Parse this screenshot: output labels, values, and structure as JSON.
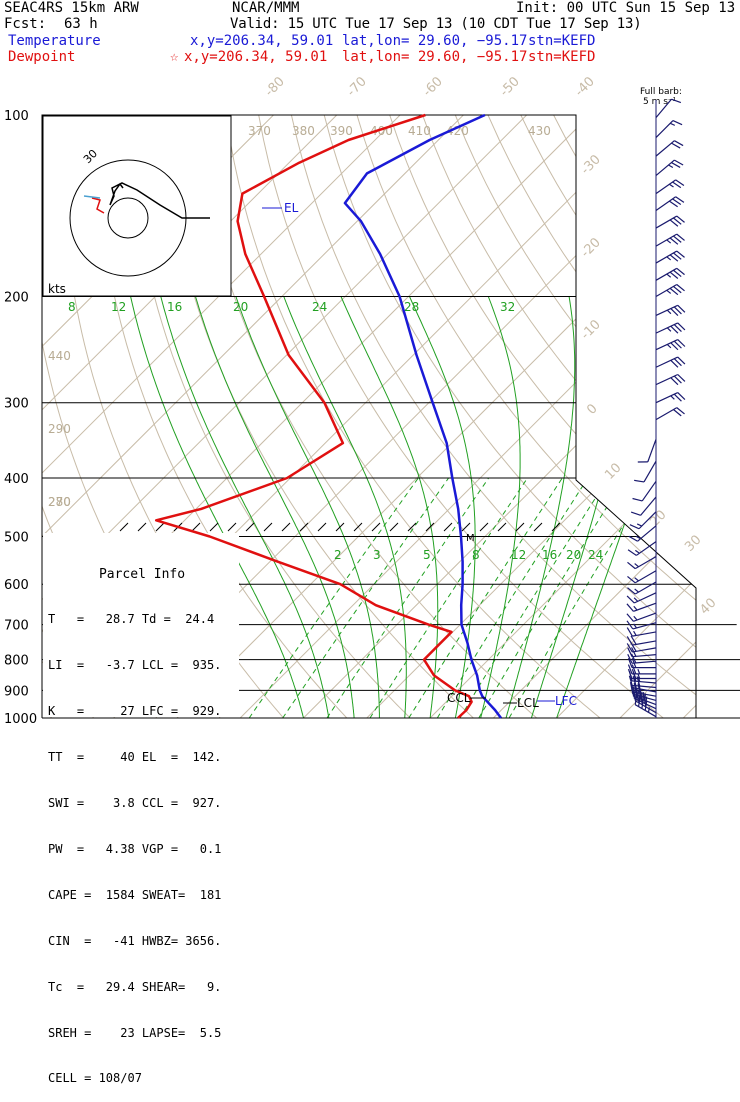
{
  "header": {
    "model": "SEAC4RS 15km ARW",
    "center": "NCAR/MMM",
    "init": "Init: 00 UTC Sun 15 Sep 13",
    "fcst_label": "Fcst:",
    "fcst_value": "63 h",
    "valid": "Valid: 15 UTC Tue 17 Sep 13 (10 CDT Tue 17 Sep 13)"
  },
  "legend": {
    "temperature": {
      "label": "Temperature",
      "xy": "x,y=206.34, 59.01",
      "latlon": "lat,lon= 29.60, −95.17",
      "stn": "stn=KEFD",
      "color": "#1a1ad6"
    },
    "dewpoint": {
      "label": "Dewpoint",
      "marker": "☆",
      "xy": "x,y=206.34, 59.01",
      "latlon": "lat,lon= 29.60, −95.17",
      "stn": "stn=KEFD",
      "color": "#e01010"
    }
  },
  "barb_legend": {
    "line1": "Full barb:",
    "line2": "5 m s⁻¹"
  },
  "hodograph": {
    "units": "kts",
    "ring_label": "30"
  },
  "parcel_info": {
    "title": "Parcel Info",
    "rows": [
      "T   =   28.7 Td =  24.4",
      "LI  =   -3.7 LCL =  935.",
      "K   =     27 LFC =  929.",
      "TT  =     40 EL  =  142.",
      "SWI =    3.8 CCL =  927.",
      "PW  =   4.38 VGP =   0.1",
      "CAPE =  1584 SWEAT=  181",
      "CIN  =   -41 HWBZ= 3656.",
      "Tc  =   29.4 SHEAR=   9.",
      "SREH =    23 LAPSE=  5.5",
      "CELL = 108/07"
    ]
  },
  "levels": {
    "EL": "EL",
    "CCL": "CCL",
    "LCL": "LCL",
    "LFC": "LFC",
    "M": "M"
  },
  "colors": {
    "temperature": "#1a1ad6",
    "dewpoint": "#e01010",
    "isotherm": "#c8bca8",
    "dry_adiabat": "#c8bca8",
    "mixing_ratio": "#22a022",
    "pressure_line": "#000000",
    "wind_barb": "#1a1a6e"
  },
  "chart_data": {
    "type": "line",
    "title": "",
    "y_axis": {
      "label": "",
      "scale": "log",
      "range": [
        1000,
        100
      ],
      "ticks": [
        100,
        200,
        300,
        400,
        500,
        600,
        700,
        800,
        900,
        1000
      ]
    },
    "isotherm_labels": [
      -80,
      -70,
      -60,
      -50,
      -40,
      -30,
      -20,
      -10,
      0,
      10,
      20,
      30,
      40
    ],
    "theta_labels": [
      370,
      380,
      390,
      400,
      410,
      420,
      430,
      440,
      290,
      280,
      270
    ],
    "mixing_ratio_upper_labels": [
      8,
      12,
      16,
      20,
      24,
      28,
      32
    ],
    "mixing_ratio_lower_labels": [
      2,
      3,
      5,
      8,
      12,
      16,
      20,
      24
    ],
    "series": [
      {
        "name": "Temperature",
        "color": "#1a1ad6",
        "points": [
          {
            "p": 1000,
            "t": 31.2
          },
          {
            "p": 970,
            "t": 29
          },
          {
            "p": 940,
            "t": 26.5
          },
          {
            "p": 920,
            "t": 24.8
          },
          {
            "p": 900,
            "t": 23.5
          },
          {
            "p": 850,
            "t": 20.7
          },
          {
            "p": 800,
            "t": 17.3
          },
          {
            "p": 750,
            "t": 14
          },
          {
            "p": 700,
            "t": 10.2
          },
          {
            "p": 650,
            "t": 7.1
          },
          {
            "p": 600,
            "t": 4
          },
          {
            "p": 550,
            "t": 0.4
          },
          {
            "p": 500,
            "t": -3.8
          },
          {
            "p": 450,
            "t": -8.6
          },
          {
            "p": 400,
            "t": -14.4
          },
          {
            "p": 350,
            "t": -20.8
          },
          {
            "p": 300,
            "t": -29.4
          },
          {
            "p": 250,
            "t": -39.5
          },
          {
            "p": 200,
            "t": -51.4
          },
          {
            "p": 170,
            "t": -61.2
          },
          {
            "p": 150,
            "t": -69.4
          },
          {
            "p": 140,
            "t": -74.8
          },
          {
            "p": 125,
            "t": -76
          },
          {
            "p": 110,
            "t": -71.4
          },
          {
            "p": 100,
            "t": -66.6
          }
        ]
      },
      {
        "name": "Dewpoint",
        "color": "#e01010",
        "points": [
          {
            "p": 1000,
            "t": 24.4
          },
          {
            "p": 970,
            "t": 24.5
          },
          {
            "p": 940,
            "t": 24
          },
          {
            "p": 920,
            "t": 22.7
          },
          {
            "p": 900,
            "t": 19.6
          },
          {
            "p": 850,
            "t": 13.9
          },
          {
            "p": 800,
            "t": 9.8
          },
          {
            "p": 760,
            "t": 9.8
          },
          {
            "p": 720,
            "t": 9.8
          },
          {
            "p": 700,
            "t": 5
          },
          {
            "p": 650,
            "t": -6.4
          },
          {
            "p": 600,
            "t": -15.3
          },
          {
            "p": 550,
            "t": -28.9
          },
          {
            "p": 500,
            "t": -43.5
          },
          {
            "p": 470,
            "t": -54.5
          },
          {
            "p": 450,
            "t": -49.2
          },
          {
            "p": 400,
            "t": -40.5
          },
          {
            "p": 350,
            "t": -37.2
          },
          {
            "p": 300,
            "t": -46.5
          },
          {
            "p": 250,
            "t": -59.7
          },
          {
            "p": 200,
            "t": -72.8
          },
          {
            "p": 170,
            "t": -82.5
          },
          {
            "p": 150,
            "t": -88.9
          },
          {
            "p": 135,
            "t": -92.5
          },
          {
            "p": 120,
            "t": -88.4
          },
          {
            "p": 110,
            "t": -84.2
          },
          {
            "p": 100,
            "t": -76
          }
        ]
      }
    ],
    "winds": [
      {
        "p": 995,
        "dir": 300,
        "spd": 9
      },
      {
        "p": 980,
        "dir": 300,
        "spd": 8
      },
      {
        "p": 965,
        "dir": 295,
        "spd": 8
      },
      {
        "p": 950,
        "dir": 290,
        "spd": 7
      },
      {
        "p": 935,
        "dir": 285,
        "spd": 7
      },
      {
        "p": 920,
        "dir": 280,
        "spd": 6
      },
      {
        "p": 905,
        "dir": 280,
        "spd": 6
      },
      {
        "p": 890,
        "dir": 275,
        "spd": 6
      },
      {
        "p": 875,
        "dir": 275,
        "spd": 5
      },
      {
        "p": 860,
        "dir": 270,
        "spd": 5
      },
      {
        "p": 845,
        "dir": 270,
        "spd": 5
      },
      {
        "p": 825,
        "dir": 270,
        "spd": 4
      },
      {
        "p": 805,
        "dir": 265,
        "spd": 4
      },
      {
        "p": 785,
        "dir": 265,
        "spd": 4
      },
      {
        "p": 765,
        "dir": 260,
        "spd": 4
      },
      {
        "p": 745,
        "dir": 260,
        "spd": 4
      },
      {
        "p": 720,
        "dir": 260,
        "spd": 3
      },
      {
        "p": 695,
        "dir": 255,
        "spd": 3
      },
      {
        "p": 670,
        "dir": 250,
        "spd": 3
      },
      {
        "p": 645,
        "dir": 250,
        "spd": 3
      },
      {
        "p": 620,
        "dir": 245,
        "spd": 3
      },
      {
        "p": 595,
        "dir": 240,
        "spd": 3
      },
      {
        "p": 570,
        "dir": 240,
        "spd": 3
      },
      {
        "p": 540,
        "dir": 240,
        "spd": 3
      },
      {
        "p": 510,
        "dir": 235,
        "spd": 3
      },
      {
        "p": 480,
        "dir": 230,
        "spd": 3
      },
      {
        "p": 455,
        "dir": 225,
        "spd": 3
      },
      {
        "p": 430,
        "dir": 220,
        "spd": 2
      },
      {
        "p": 405,
        "dir": 215,
        "spd": 2
      },
      {
        "p": 375,
        "dir": 210,
        "spd": 2
      },
      {
        "p": 345,
        "dir": 200,
        "spd": 2
      },
      {
        "p": 320,
        "dir": 60,
        "spd": 4
      },
      {
        "p": 300,
        "dir": 65,
        "spd": 5
      },
      {
        "p": 280,
        "dir": 65,
        "spd": 6
      },
      {
        "p": 262,
        "dir": 65,
        "spd": 6
      },
      {
        "p": 245,
        "dir": 65,
        "spd": 7
      },
      {
        "p": 230,
        "dir": 65,
        "spd": 7
      },
      {
        "p": 215,
        "dir": 65,
        "spd": 7
      },
      {
        "p": 200,
        "dir": 60,
        "spd": 7
      },
      {
        "p": 188,
        "dir": 60,
        "spd": 7
      },
      {
        "p": 176,
        "dir": 60,
        "spd": 7
      },
      {
        "p": 165,
        "dir": 60,
        "spd": 7
      },
      {
        "p": 154,
        "dir": 60,
        "spd": 6
      },
      {
        "p": 144,
        "dir": 55,
        "spd": 6
      },
      {
        "p": 135,
        "dir": 55,
        "spd": 5
      },
      {
        "p": 126,
        "dir": 50,
        "spd": 5
      },
      {
        "p": 117,
        "dir": 50,
        "spd": 4
      },
      {
        "p": 109,
        "dir": 45,
        "spd": 3
      },
      {
        "p": 101,
        "dir": 40,
        "spd": 2
      }
    ]
  }
}
